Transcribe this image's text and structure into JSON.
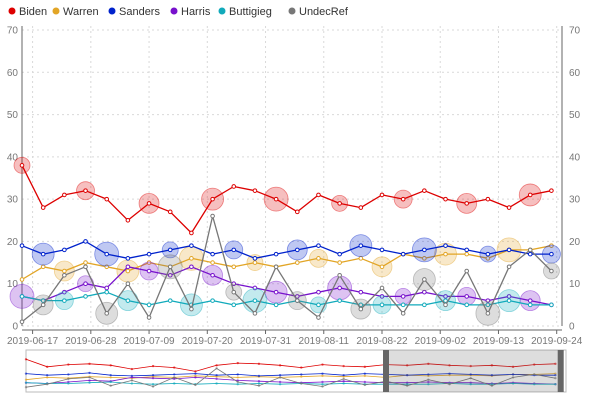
{
  "chart_data": {
    "type": "line",
    "title": "",
    "xlabel": "",
    "ylabel": "",
    "ylim": [
      0,
      70
    ],
    "y_ticks": [
      0,
      10,
      20,
      30,
      40,
      50,
      60,
      70
    ],
    "x_ticks": [
      "2019-06-17",
      "2019-06-28",
      "2019-07-09",
      "2019-07-20",
      "2019-07-31",
      "2019-08-11",
      "2019-08-22",
      "2019-09-02",
      "2019-09-13",
      "2019-09-24"
    ],
    "x": [
      "2019-06-15",
      "2019-06-19",
      "2019-06-23",
      "2019-06-27",
      "2019-07-01",
      "2019-07-05",
      "2019-07-09",
      "2019-07-13",
      "2019-07-17",
      "2019-07-21",
      "2019-07-25",
      "2019-07-29",
      "2019-08-02",
      "2019-08-06",
      "2019-08-10",
      "2019-08-14",
      "2019-08-18",
      "2019-08-22",
      "2019-08-26",
      "2019-08-30",
      "2019-09-03",
      "2019-09-07",
      "2019-09-11",
      "2019-09-15",
      "2019-09-19",
      "2019-09-23"
    ],
    "grid": true,
    "legend_position": "top-left",
    "series": [
      {
        "name": "Biden",
        "color": "#dd0000",
        "values": [
          38,
          28,
          31,
          32,
          30,
          25,
          29,
          27,
          22,
          30,
          33,
          32,
          30,
          27,
          31,
          29,
          28,
          31,
          30,
          32,
          30,
          29,
          30,
          28,
          31,
          32
        ]
      },
      {
        "name": "Warren",
        "color": "#e2a526",
        "values": [
          11,
          14,
          13,
          15,
          14,
          13,
          15,
          14,
          16,
          15,
          14,
          15,
          14,
          15,
          16,
          15,
          16,
          14,
          17,
          16,
          17,
          17,
          16,
          18,
          18,
          19
        ]
      },
      {
        "name": "Sanders",
        "color": "#0022cc",
        "values": [
          19,
          17,
          18,
          20,
          17,
          16,
          17,
          18,
          19,
          17,
          18,
          16,
          17,
          18,
          19,
          17,
          19,
          18,
          17,
          18,
          19,
          18,
          17,
          18,
          17,
          17
        ]
      },
      {
        "name": "Harris",
        "color": "#7711cc",
        "values": [
          7,
          6,
          8,
          10,
          9,
          14,
          13,
          12,
          14,
          12,
          10,
          9,
          8,
          7,
          8,
          9,
          8,
          7,
          7,
          8,
          7,
          7,
          6,
          7,
          6,
          5
        ]
      },
      {
        "name": "Buttigieg",
        "color": "#11aabb",
        "values": [
          7,
          6,
          6,
          7,
          8,
          6,
          5,
          6,
          5,
          6,
          5,
          6,
          5,
          6,
          5,
          6,
          5,
          5,
          5,
          5,
          6,
          5,
          5,
          6,
          5,
          5
        ]
      },
      {
        "name": "UndecRef",
        "color": "#777777",
        "values": [
          1,
          5,
          12,
          14,
          3,
          10,
          2,
          14,
          4,
          26,
          8,
          3,
          14,
          6,
          2,
          12,
          4,
          9,
          3,
          11,
          5,
          13,
          3,
          14,
          18,
          13
        ]
      }
    ]
  },
  "navigator": {
    "range_start": "2019-08-22",
    "range_end": "2019-09-24"
  }
}
